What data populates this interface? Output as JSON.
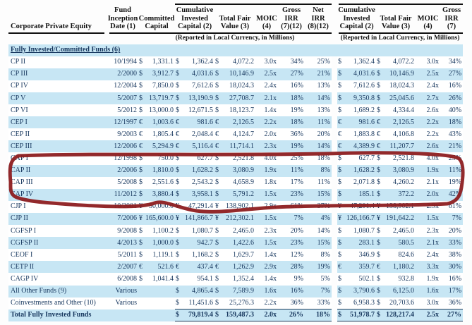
{
  "header": {
    "row_label_column": "Corporate Private Equity",
    "fund_inception_date": "Fund\nInception\nDate (1)",
    "committed_capital": "Committed\nCapital",
    "cumulative_invested_capital": "Cumulative\nInvested\nCapital (2)",
    "total_fair_value": "Total Fair\nValue (3)",
    "moic": "MOIC\n(4)",
    "gross_irr_left": "Gross\nIRR\n(7)(12)",
    "net_irr": "Net\nIRR\n(8)(12)",
    "gross_irr_right": "Gross\nIRR\n(7)",
    "reported_note": "(Reported in Local Currency, in Millions)"
  },
  "section_header": "Fully Invested/Committed Funds (6)",
  "rows": [
    [
      "CP II",
      "10/1994",
      "$",
      "1,331.1",
      "$",
      "1,362.4",
      "$",
      "4,072.2",
      "3.0x",
      "34%",
      "25%",
      "$",
      "1,362.4",
      "$",
      "4,072.2",
      "3.0x",
      "34%"
    ],
    [
      "CP III",
      "2/2000",
      "$",
      "3,912.7",
      "$",
      "4,031.6",
      "$",
      "10,146.9",
      "2.5x",
      "27%",
      "21%",
      "$",
      "4,031.6",
      "$",
      "10,146.9",
      "2.5x",
      "27%"
    ],
    [
      "CP IV",
      "12/2004",
      "$",
      "7,850.0",
      "$",
      "7,612.6",
      "$",
      "18,024.3",
      "2.4x",
      "16%",
      "13%",
      "$",
      "7,612.6",
      "$",
      "18,024.3",
      "2.4x",
      "16%"
    ],
    [
      "CP V",
      "5/2007",
      "$",
      "13,719.7",
      "$",
      "13,190.9",
      "$",
      "27,708.7",
      "2.1x",
      "18%",
      "14%",
      "$",
      "9,350.8",
      "$",
      "25,045.6",
      "2.7x",
      "26%"
    ],
    [
      "CP VI",
      "5/2012",
      "$",
      "13,000.0",
      "$",
      "12,671.5",
      "$",
      "18,123.7",
      "1.4x",
      "19%",
      "13%",
      "$",
      "1,689.2",
      "$",
      "4,334.4",
      "2.6x",
      "40%"
    ],
    [
      "CEP I",
      "12/1997",
      "€",
      "1,003.6",
      "€",
      "981.6",
      "€",
      "2,126.5",
      "2.2x",
      "18%",
      "11%",
      "€",
      "981.6",
      "€",
      "2,126.5",
      "2.2x",
      "18%"
    ],
    [
      "CEP II",
      "9/2003",
      "€",
      "1,805.4",
      "€",
      "2,048.4",
      "€",
      "4,124.7",
      "2.0x",
      "36%",
      "20%",
      "€",
      "1,883.8",
      "€",
      "4,106.8",
      "2.2x",
      "43%"
    ],
    [
      "CEP III",
      "12/2006",
      "€",
      "5,294.9",
      "€",
      "5,116.4",
      "€",
      "11,714.1",
      "2.3x",
      "19%",
      "14%",
      "€",
      "4,389.9",
      "€",
      "11,207.7",
      "2.6x",
      "21%"
    ],
    [
      "CAP I",
      "12/1998",
      "$",
      "750.0",
      "$",
      "627.7",
      "$",
      "2,521.8",
      "4.0x",
      "25%",
      "18%",
      "$",
      "627.7",
      "$",
      "2,521.8",
      "4.0x",
      "25%"
    ],
    [
      "CAP II",
      "2/2006",
      "$",
      "1,810.0",
      "$",
      "1,628.2",
      "$",
      "3,080.9",
      "1.9x",
      "11%",
      "8%",
      "$",
      "1,628.2",
      "$",
      "3,080.9",
      "1.9x",
      "11%"
    ],
    [
      "CAP III",
      "5/2008",
      "$",
      "2,551.6",
      "$",
      "2,543.2",
      "$",
      "4,658.9",
      "1.8x",
      "17%",
      "11%",
      "$",
      "2,071.8",
      "$",
      "4,260.2",
      "2.1x",
      "19%"
    ],
    [
      "CAP IV",
      "11/2012",
      "$",
      "3,880.4",
      "$",
      "3,958.1",
      "$",
      "5,791.2",
      "1.5x",
      "23%",
      "15%",
      "$",
      "185.1",
      "$",
      "372.2",
      "2.0x",
      "42%"
    ],
    [
      "CJP I",
      "10/2001",
      "¥",
      "50,000.0",
      "¥",
      "47,291.4",
      "¥",
      "138,902.1",
      "2.9x",
      "61%",
      "37%",
      "¥",
      "47,291.4",
      "¥",
      "138,902.1",
      "2.9x",
      "61%"
    ],
    [
      "CJP II",
      "7/2006",
      "¥",
      "165,600.0",
      "¥",
      "141,866.7",
      "¥",
      "212,302.1",
      "1.5x",
      "7%",
      "4%",
      "¥",
      "126,166.7",
      "¥",
      "191,642.2",
      "1.5x",
      "7%"
    ],
    [
      "CGFSP I",
      "9/2008",
      "$",
      "1,100.2",
      "$",
      "1,080.7",
      "$",
      "2,465.0",
      "2.3x",
      "20%",
      "14%",
      "$",
      "1,080.7",
      "$",
      "2,465.0",
      "2.3x",
      "20%"
    ],
    [
      "CGFSP II",
      "4/2013",
      "$",
      "1,000.0",
      "$",
      "942.7",
      "$",
      "1,422.6",
      "1.5x",
      "23%",
      "15%",
      "$",
      "283.1",
      "$",
      "580.5",
      "2.1x",
      "33%"
    ],
    [
      "CEOF I",
      "5/2011",
      "$",
      "1,119.1",
      "$",
      "1,168.2",
      "$",
      "1,629.7",
      "1.4x",
      "12%",
      "8%",
      "$",
      "346.9",
      "$",
      "824.6",
      "2.4x",
      "38%"
    ],
    [
      "CETP II",
      "2/2007",
      "€",
      "521.6",
      "€",
      "437.4",
      "€",
      "1,262.9",
      "2.9x",
      "28%",
      "19%",
      "€",
      "359.7",
      "€",
      "1,180.2",
      "3.3x",
      "30%"
    ],
    [
      "CAGP IV",
      "6/2008",
      "$",
      "1,041.4",
      "$",
      "954.1",
      "$",
      "1,352.4",
      "1.4x",
      "9%",
      "5%",
      "$",
      "502.1",
      "$",
      "932.8",
      "1.9x",
      "16%"
    ],
    [
      "All Other Funds (9)",
      "Various",
      "",
      "",
      "$",
      "4,865.4",
      "$",
      "7,589.9",
      "1.6x",
      "16%",
      "7%",
      "$",
      "3,790.6",
      "$",
      "6,125.0",
      "1.6x",
      "17%"
    ],
    [
      "Coinvestments and Other (10)",
      "Various",
      "",
      "",
      "$",
      "11,451.6",
      "$",
      "25,276.3",
      "2.2x",
      "36%",
      "33%",
      "$",
      "6,958.3",
      "$",
      "20,703.6",
      "3.0x",
      "36%"
    ]
  ],
  "total_row": {
    "label": "Total Fully Invested Funds",
    "c2": "$",
    "invested": "79,819.4",
    "c3": "$",
    "tfv": "159,487.3",
    "moic": "2.0x",
    "gross": "26%",
    "net": "18%",
    "rc1": "$",
    "rinvested": "51,978.7",
    "rc2": "$",
    "rtfv": "128,217.4",
    "rmoic": "2.5x",
    "rgross": "27%"
  },
  "annotation": {
    "type": "hand-drawn red circle",
    "color": "#8d1d20",
    "circled_funds": [
      "CAP I",
      "CAP II",
      "CAP III",
      "CAP IV"
    ]
  },
  "colors": {
    "stripe_blue": "#c7e6f4",
    "text_navy": "#17375e",
    "rule_black": "#101010"
  }
}
